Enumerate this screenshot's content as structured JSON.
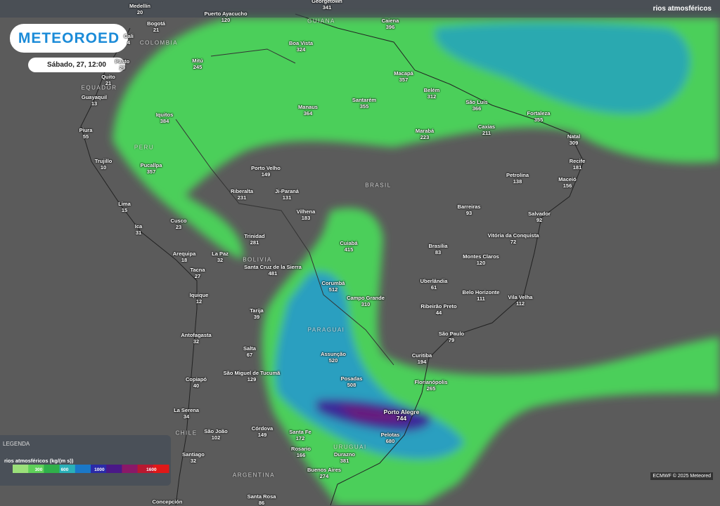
{
  "header": {
    "product": "rios atmosféricos",
    "logo": "METEOROED",
    "datetime": "Sábado, 27, 12:00"
  },
  "countries": [
    "GUIANA",
    "COLOMBIA",
    "EQUADOR",
    "PERU",
    "BRASIL",
    "BOLIVIA",
    "PARAGUAI",
    "CHILE",
    "URUGUAI",
    "ARGENTINA"
  ],
  "cities": [
    {
      "name": "Medellín",
      "value": 20
    },
    {
      "name": "Georgetown",
      "value": 341
    },
    {
      "name": "Puerto Ayacucho",
      "value": 120
    },
    {
      "name": "Bogotá",
      "value": 21
    },
    {
      "name": "Cali",
      "value": 4
    },
    {
      "name": "Boa Vista",
      "value": 324
    },
    {
      "name": "Caiena",
      "value": 396
    },
    {
      "name": "Mitú",
      "value": 245
    },
    {
      "name": "Pasto",
      "value": 29
    },
    {
      "name": "Quito",
      "value": 21
    },
    {
      "name": "Guayaquil",
      "value": 13
    },
    {
      "name": "Macapá",
      "value": 357
    },
    {
      "name": "Belém",
      "value": 312
    },
    {
      "name": "São Luís",
      "value": 366
    },
    {
      "name": "Fortaleza",
      "value": 355
    },
    {
      "name": "Manaus",
      "value": 364
    },
    {
      "name": "Santarém",
      "value": 355
    },
    {
      "name": "Iquitos",
      "value": 384
    },
    {
      "name": "Piura",
      "value": 55
    },
    {
      "name": "Marabá",
      "value": 223
    },
    {
      "name": "Caxias",
      "value": 211
    },
    {
      "name": "Natal",
      "value": 309
    },
    {
      "name": "Trujillo",
      "value": 10
    },
    {
      "name": "Pucallpa",
      "value": 357
    },
    {
      "name": "Porto Velho",
      "value": 149
    },
    {
      "name": "Recife",
      "value": 181
    },
    {
      "name": "Petrolina",
      "value": 138
    },
    {
      "name": "Maceió",
      "value": 156
    },
    {
      "name": "Riberalta",
      "value": 231
    },
    {
      "name": "Ji-Paraná",
      "value": 131
    },
    {
      "name": "Lima",
      "value": 15
    },
    {
      "name": "Barreiras",
      "value": 93
    },
    {
      "name": "Vilhena",
      "value": 183
    },
    {
      "name": "Salvador",
      "value": 92
    },
    {
      "name": "Cusco",
      "value": 23
    },
    {
      "name": "Ica",
      "value": 31
    },
    {
      "name": "Trinidad",
      "value": 281
    },
    {
      "name": "Vitória da Conquista",
      "value": 72
    },
    {
      "name": "Cuiabá",
      "value": 415
    },
    {
      "name": "Brasília",
      "value": 83
    },
    {
      "name": "Arequipa",
      "value": 18
    },
    {
      "name": "La Paz",
      "value": 32
    },
    {
      "name": "Montes Claros",
      "value": 120
    },
    {
      "name": "Santa Cruz de la Sierra",
      "value": 481
    },
    {
      "name": "Tacna",
      "value": 27
    },
    {
      "name": "Uberlândia",
      "value": 61
    },
    {
      "name": "Corumbá",
      "value": 512
    },
    {
      "name": "Belo Horizonte",
      "value": 111
    },
    {
      "name": "Iquique",
      "value": 12
    },
    {
      "name": "Campo Grande",
      "value": 310
    },
    {
      "name": "Vila Velha",
      "value": 112
    },
    {
      "name": "Ribeirão Preto",
      "value": 44
    },
    {
      "name": "Tarija",
      "value": 39
    },
    {
      "name": "São Paulo",
      "value": 79
    },
    {
      "name": "Antofagasta",
      "value": 32
    },
    {
      "name": "Salta",
      "value": 67
    },
    {
      "name": "Assunção",
      "value": 520
    },
    {
      "name": "Curitiba",
      "value": 194
    },
    {
      "name": "São Miguel de Tucumã",
      "value": 129
    },
    {
      "name": "Copiapó",
      "value": 40
    },
    {
      "name": "Posadas",
      "value": 508
    },
    {
      "name": "Florianópolis",
      "value": 265
    },
    {
      "name": "La Serena",
      "value": 34
    },
    {
      "name": "Porto Alegre",
      "value": 744
    },
    {
      "name": "Pelotas",
      "value": 680
    },
    {
      "name": "São João",
      "value": 102
    },
    {
      "name": "Córdova",
      "value": 149
    },
    {
      "name": "Santa Fe",
      "value": 172
    },
    {
      "name": "Rosario",
      "value": 166
    },
    {
      "name": "Santiago",
      "value": 32
    },
    {
      "name": "Durazno",
      "value": 381
    },
    {
      "name": "Buenos Aires",
      "value": 274
    },
    {
      "name": "Concepción"
    },
    {
      "name": "Santa Rosa",
      "value": 86
    }
  ],
  "legend": {
    "title": "LEGENDA",
    "variable": "rios atmosféricos (kg/(m s))",
    "colors": [
      "#9be07a",
      "#5fd05a",
      "#2fb04a",
      "#2ab0b8",
      "#1a78c8",
      "#2a2aa8",
      "#4a1888",
      "#8a1868",
      "#b81830",
      "#e01818"
    ],
    "ticks": [
      300,
      600,
      1000,
      1600
    ],
    "range": [
      0,
      1800
    ]
  },
  "credit": "ECMWF © 2025 Meteored"
}
